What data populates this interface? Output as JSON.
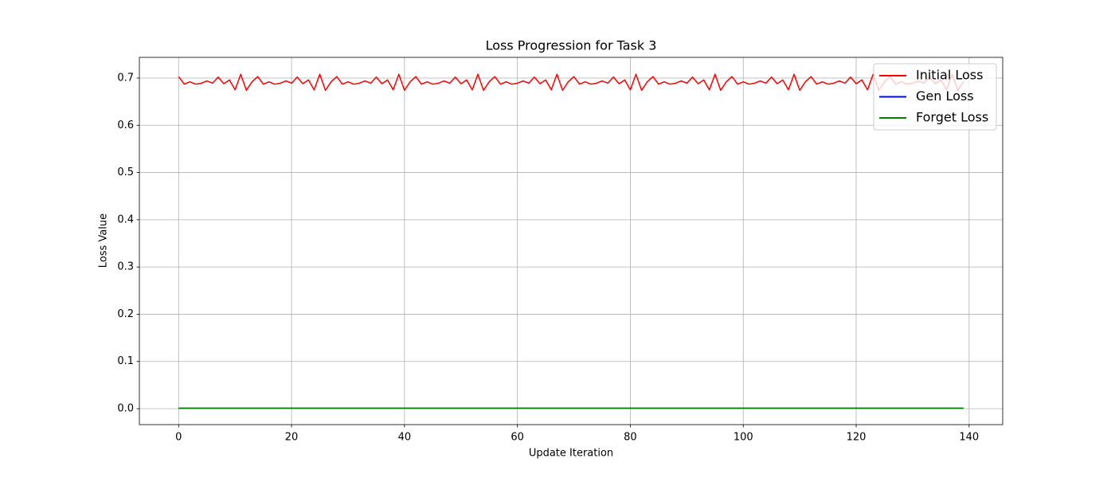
{
  "chart_data": {
    "type": "line",
    "title": "Loss Progression for Task 3",
    "x_label": "Update Iteration",
    "y_label": "Loss Value",
    "x": [
      0,
      1,
      2,
      3,
      4,
      5,
      6,
      7,
      8,
      9,
      10,
      11,
      12,
      13,
      14,
      15,
      16,
      17,
      18,
      19,
      20,
      21,
      22,
      23,
      24,
      25,
      26,
      27,
      28,
      29,
      30,
      31,
      32,
      33,
      34,
      35,
      36,
      37,
      38,
      39,
      40,
      41,
      42,
      43,
      44,
      45,
      46,
      47,
      48,
      49,
      50,
      51,
      52,
      53,
      54,
      55,
      56,
      57,
      58,
      59,
      60,
      61,
      62,
      63,
      64,
      65,
      66,
      67,
      68,
      69,
      70,
      71,
      72,
      73,
      74,
      75,
      76,
      77,
      78,
      79,
      80,
      81,
      82,
      83,
      84,
      85,
      86,
      87,
      88,
      89,
      90,
      91,
      92,
      93,
      94,
      95,
      96,
      97,
      98,
      99,
      100,
      101,
      102,
      103,
      104,
      105,
      106,
      107,
      108,
      109,
      110,
      111,
      112,
      113,
      114,
      115,
      116,
      117,
      118,
      119,
      120,
      121,
      122,
      123,
      124,
      125,
      126,
      127,
      128,
      129,
      130,
      131,
      132,
      133,
      134,
      135,
      136,
      137,
      138,
      139
    ],
    "series": [
      {
        "name": "Initial Loss",
        "color": "#ff0000",
        "values": [
          0.703,
          0.687,
          0.692,
          0.687,
          0.689,
          0.694,
          0.689,
          0.702,
          0.688,
          0.696,
          0.675,
          0.708,
          0.674,
          0.692,
          0.703,
          0.687,
          0.692,
          0.687,
          0.689,
          0.694,
          0.689,
          0.702,
          0.688,
          0.696,
          0.675,
          0.708,
          0.674,
          0.692,
          0.703,
          0.687,
          0.692,
          0.687,
          0.689,
          0.694,
          0.689,
          0.702,
          0.688,
          0.696,
          0.675,
          0.708,
          0.674,
          0.692,
          0.703,
          0.687,
          0.692,
          0.687,
          0.689,
          0.694,
          0.689,
          0.702,
          0.688,
          0.696,
          0.675,
          0.708,
          0.674,
          0.692,
          0.703,
          0.687,
          0.692,
          0.687,
          0.689,
          0.694,
          0.689,
          0.702,
          0.688,
          0.696,
          0.675,
          0.708,
          0.674,
          0.692,
          0.703,
          0.687,
          0.692,
          0.687,
          0.689,
          0.694,
          0.689,
          0.702,
          0.688,
          0.696,
          0.675,
          0.708,
          0.674,
          0.692,
          0.703,
          0.687,
          0.692,
          0.687,
          0.689,
          0.694,
          0.689,
          0.702,
          0.688,
          0.696,
          0.675,
          0.708,
          0.674,
          0.692,
          0.703,
          0.687,
          0.692,
          0.687,
          0.689,
          0.694,
          0.689,
          0.702,
          0.688,
          0.696,
          0.675,
          0.708,
          0.674,
          0.692,
          0.703,
          0.687,
          0.692,
          0.687,
          0.689,
          0.694,
          0.689,
          0.702,
          0.688,
          0.696,
          0.675,
          0.708,
          0.674,
          0.692,
          0.703,
          0.687,
          0.692,
          0.687,
          0.689,
          0.694,
          0.689,
          0.702,
          0.688,
          0.696,
          0.675,
          0.708,
          0.674,
          0.692
        ]
      },
      {
        "name": "Gen Loss",
        "color": "#0000ff",
        "values": [
          0.001,
          0.001,
          0.001,
          0.001,
          0.001,
          0.001,
          0.001,
          0.001,
          0.001,
          0.001,
          0.001,
          0.001,
          0.001,
          0.001,
          0.001,
          0.001,
          0.001,
          0.001,
          0.001,
          0.001,
          0.001,
          0.001,
          0.001,
          0.001,
          0.001,
          0.001,
          0.001,
          0.001,
          0.001,
          0.001,
          0.001,
          0.001,
          0.001,
          0.001,
          0.001,
          0.001,
          0.001,
          0.001,
          0.001,
          0.001,
          0.001,
          0.001,
          0.001,
          0.001,
          0.001,
          0.001,
          0.001,
          0.001,
          0.001,
          0.001,
          0.001,
          0.001,
          0.001,
          0.001,
          0.001,
          0.001,
          0.001,
          0.001,
          0.001,
          0.001,
          0.001,
          0.001,
          0.001,
          0.001,
          0.001,
          0.001,
          0.001,
          0.001,
          0.001,
          0.001,
          0.001,
          0.001,
          0.001,
          0.001,
          0.001,
          0.001,
          0.001,
          0.001,
          0.001,
          0.001,
          0.001,
          0.001,
          0.001,
          0.001,
          0.001,
          0.001,
          0.001,
          0.001,
          0.001,
          0.001,
          0.001,
          0.001,
          0.001,
          0.001,
          0.001,
          0.001,
          0.001,
          0.001,
          0.001,
          0.001,
          0.001,
          0.001,
          0.001,
          0.001,
          0.001,
          0.001,
          0.001,
          0.001,
          0.001,
          0.001,
          0.001,
          0.001,
          0.001,
          0.001,
          0.001,
          0.001,
          0.001,
          0.001,
          0.001,
          0.001,
          0.001,
          0.001,
          0.001,
          0.001,
          0.001,
          0.001,
          0.001,
          0.001,
          0.001,
          0.001,
          0.001,
          0.001,
          0.001,
          0.001,
          0.001,
          0.001,
          0.001,
          0.001,
          0.001,
          0.001
        ]
      },
      {
        "name": "Forget Loss",
        "color": "#008000",
        "values": [
          0.001,
          0.001,
          0.001,
          0.001,
          0.001,
          0.001,
          0.001,
          0.001,
          0.001,
          0.001,
          0.001,
          0.001,
          0.001,
          0.001,
          0.001,
          0.001,
          0.001,
          0.001,
          0.001,
          0.001,
          0.001,
          0.001,
          0.001,
          0.001,
          0.001,
          0.001,
          0.001,
          0.001,
          0.001,
          0.001,
          0.001,
          0.001,
          0.001,
          0.001,
          0.001,
          0.001,
          0.001,
          0.001,
          0.001,
          0.001,
          0.001,
          0.001,
          0.001,
          0.001,
          0.001,
          0.001,
          0.001,
          0.001,
          0.001,
          0.001,
          0.001,
          0.001,
          0.001,
          0.001,
          0.001,
          0.001,
          0.001,
          0.001,
          0.001,
          0.001,
          0.001,
          0.001,
          0.001,
          0.001,
          0.001,
          0.001,
          0.001,
          0.001,
          0.001,
          0.001,
          0.001,
          0.001,
          0.001,
          0.001,
          0.001,
          0.001,
          0.001,
          0.001,
          0.001,
          0.001,
          0.001,
          0.001,
          0.001,
          0.001,
          0.001,
          0.001,
          0.001,
          0.001,
          0.001,
          0.001,
          0.001,
          0.001,
          0.001,
          0.001,
          0.001,
          0.001,
          0.001,
          0.001,
          0.001,
          0.001,
          0.001,
          0.001,
          0.001,
          0.001,
          0.001,
          0.001,
          0.001,
          0.001,
          0.001,
          0.001,
          0.001,
          0.001,
          0.001,
          0.001,
          0.001,
          0.001,
          0.001,
          0.001,
          0.001,
          0.001,
          0.001,
          0.001,
          0.001,
          0.001,
          0.001,
          0.001,
          0.001,
          0.001,
          0.001,
          0.001,
          0.001,
          0.001,
          0.001,
          0.001,
          0.001,
          0.001,
          0.001,
          0.001,
          0.001,
          0.001
        ]
      }
    ],
    "xlim": [
      -6.95,
      145.95
    ],
    "xticks": [
      0,
      20,
      40,
      60,
      80,
      100,
      120,
      140
    ],
    "ylim": [
      -0.0337,
      0.7438
    ],
    "yticks": [
      {
        "value": 0,
        "label": "0.0"
      },
      0.1,
      0.2,
      0.3,
      0.4,
      0.5,
      0.6,
      0.7
    ],
    "grid": true,
    "legend": "upper right"
  }
}
